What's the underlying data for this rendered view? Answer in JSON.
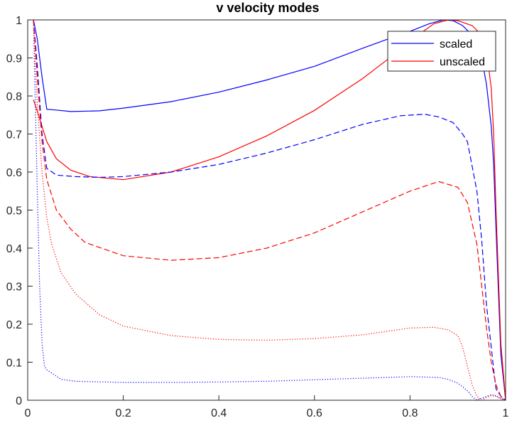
{
  "chart_data": {
    "type": "line",
    "title": "v velocity modes",
    "xlabel": "",
    "ylabel": "",
    "xlim": [
      0,
      1
    ],
    "ylim": [
      0,
      1
    ],
    "xticks": [
      0,
      0.2,
      0.4,
      0.6,
      0.8,
      1
    ],
    "xtick_labels": [
      "0",
      "0.2",
      "0.4",
      "0.6",
      "0.8",
      "1"
    ],
    "yticks": [
      0,
      0.1,
      0.2,
      0.3,
      0.4,
      0.5,
      0.6,
      0.7,
      0.8,
      0.9,
      1
    ],
    "ytick_labels": [
      "0",
      "0.1",
      "0.2",
      "0.3",
      "0.4",
      "0.5",
      "0.6",
      "0.7",
      "0.8",
      "0.9",
      "1"
    ],
    "grid": false,
    "legend": {
      "position": "top-right",
      "entries": [
        {
          "label": "scaled",
          "color": "#0000ff"
        },
        {
          "label": "unscaled",
          "color": "#ff0000"
        }
      ]
    },
    "series": [
      {
        "group": "scaled",
        "color": "#0000ff",
        "style": "solid",
        "x": [
          0.012,
          0.02,
          0.03,
          0.04,
          0.06,
          0.09,
          0.15,
          0.2,
          0.3,
          0.4,
          0.5,
          0.6,
          0.7,
          0.75,
          0.8,
          0.84,
          0.87,
          0.89,
          0.91,
          0.93,
          0.95,
          0.96,
          0.97,
          0.975,
          0.98,
          0.99,
          1.0
        ],
        "y": [
          1.0,
          0.95,
          0.85,
          0.765,
          0.763,
          0.759,
          0.761,
          0.768,
          0.785,
          0.81,
          0.842,
          0.878,
          0.925,
          0.948,
          0.97,
          0.99,
          1.0,
          0.998,
          0.985,
          0.96,
          0.9,
          0.83,
          0.72,
          0.62,
          0.45,
          0.12,
          0.0
        ]
      },
      {
        "group": "unscaled",
        "color": "#ff0000",
        "style": "solid",
        "x": [
          0.012,
          0.02,
          0.03,
          0.04,
          0.06,
          0.09,
          0.13,
          0.2,
          0.3,
          0.4,
          0.5,
          0.6,
          0.7,
          0.75,
          0.8,
          0.85,
          0.88,
          0.9,
          0.93,
          0.95,
          0.96,
          0.97,
          0.975,
          0.98,
          0.99,
          1.0
        ],
        "y": [
          0.79,
          0.76,
          0.72,
          0.68,
          0.635,
          0.605,
          0.588,
          0.58,
          0.6,
          0.64,
          0.695,
          0.762,
          0.845,
          0.893,
          0.945,
          0.99,
          1.0,
          0.998,
          0.985,
          0.96,
          0.92,
          0.82,
          0.7,
          0.5,
          0.15,
          0.0
        ]
      },
      {
        "group": "scaled",
        "color": "#0000ff",
        "style": "dashed",
        "x": [
          0.012,
          0.02,
          0.03,
          0.04,
          0.06,
          0.1,
          0.15,
          0.2,
          0.3,
          0.4,
          0.5,
          0.6,
          0.7,
          0.78,
          0.83,
          0.86,
          0.89,
          0.91,
          0.92,
          0.94,
          0.95,
          0.96,
          0.97,
          0.975,
          0.98,
          0.99,
          1.0
        ],
        "y": [
          1.0,
          0.88,
          0.7,
          0.61,
          0.592,
          0.588,
          0.586,
          0.588,
          0.6,
          0.62,
          0.65,
          0.685,
          0.725,
          0.748,
          0.752,
          0.745,
          0.73,
          0.7,
          0.68,
          0.55,
          0.42,
          0.25,
          0.14,
          0.08,
          0.03,
          0.01,
          0.0
        ]
      },
      {
        "group": "unscaled",
        "color": "#ff0000",
        "style": "dashed",
        "x": [
          0.012,
          0.02,
          0.03,
          0.04,
          0.06,
          0.09,
          0.12,
          0.2,
          0.3,
          0.4,
          0.5,
          0.6,
          0.7,
          0.8,
          0.86,
          0.9,
          0.92,
          0.94,
          0.95,
          0.96,
          0.97,
          0.98,
          0.99,
          1.0
        ],
        "y": [
          1.0,
          0.85,
          0.68,
          0.58,
          0.5,
          0.45,
          0.415,
          0.38,
          0.368,
          0.375,
          0.4,
          0.44,
          0.495,
          0.55,
          0.575,
          0.56,
          0.52,
          0.41,
          0.3,
          0.19,
          0.1,
          0.04,
          0.01,
          0.0
        ]
      },
      {
        "group": "scaled",
        "color": "#0000ff",
        "style": "dotted",
        "x": [
          0.012,
          0.02,
          0.025,
          0.03,
          0.035,
          0.04,
          0.07,
          0.1,
          0.2,
          0.3,
          0.4,
          0.5,
          0.6,
          0.7,
          0.8,
          0.86,
          0.88,
          0.9,
          0.92,
          0.93,
          0.94,
          0.95,
          0.96,
          0.97,
          0.98,
          0.99,
          1.0
        ],
        "y": [
          1.0,
          0.55,
          0.3,
          0.15,
          0.09,
          0.08,
          0.055,
          0.05,
          0.047,
          0.047,
          0.048,
          0.05,
          0.054,
          0.058,
          0.062,
          0.06,
          0.055,
          0.045,
          0.025,
          0.01,
          0.0,
          0.005,
          0.01,
          0.015,
          0.012,
          0.005,
          0.0
        ]
      },
      {
        "group": "unscaled",
        "color": "#ff0000",
        "style": "dotted",
        "x": [
          0.012,
          0.02,
          0.03,
          0.04,
          0.05,
          0.07,
          0.1,
          0.15,
          0.2,
          0.3,
          0.4,
          0.5,
          0.6,
          0.7,
          0.8,
          0.85,
          0.88,
          0.9,
          0.91,
          0.92,
          0.93,
          0.94,
          0.95,
          0.96,
          0.97,
          0.98,
          0.99,
          1.0
        ],
        "y": [
          1.0,
          0.78,
          0.6,
          0.48,
          0.41,
          0.335,
          0.28,
          0.225,
          0.195,
          0.17,
          0.16,
          0.158,
          0.162,
          0.172,
          0.19,
          0.192,
          0.185,
          0.17,
          0.14,
          0.09,
          0.04,
          0.01,
          0.0,
          0.008,
          0.012,
          0.01,
          0.004,
          0.0
        ]
      }
    ]
  }
}
